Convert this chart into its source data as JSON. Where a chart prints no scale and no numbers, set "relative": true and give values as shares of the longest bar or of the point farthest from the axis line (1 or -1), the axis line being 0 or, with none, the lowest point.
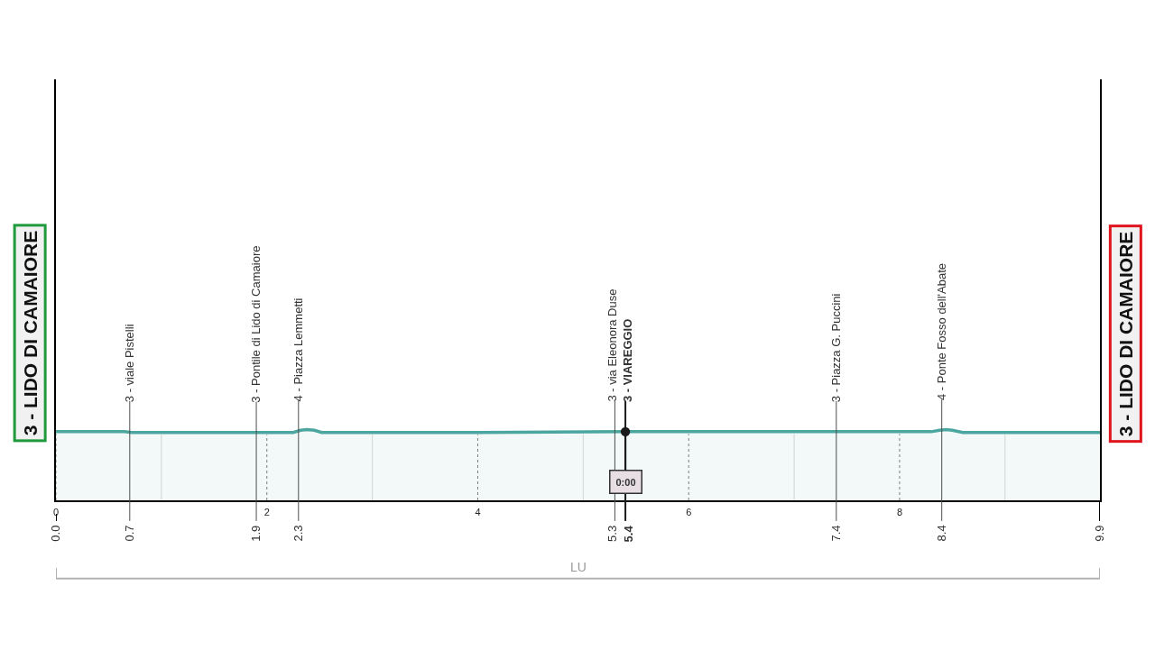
{
  "chart_data": {
    "type": "area",
    "relative": true,
    "x": [
      0,
      0.65,
      0.72,
      2.25,
      2.32,
      2.38,
      2.45,
      2.52,
      4.0,
      5.4,
      8.3,
      8.38,
      8.44,
      8.5,
      8.6,
      9.9
    ],
    "series": [
      {
        "color": "#4aa69f",
        "values": [
          0.97,
          0.97,
          0.96,
          0.96,
          0.99,
          1.0,
          0.99,
          0.96,
          0.96,
          0.97,
          0.97,
          0.99,
          1.0,
          0.99,
          0.96,
          0.96
        ]
      }
    ],
    "xlim": [
      0,
      9.9
    ],
    "xticks": [
      0,
      {
        "value": 1,
        "label": null
      },
      2,
      {
        "value": 3,
        "label": null
      },
      4,
      {
        "value": 5,
        "label": null
      },
      6,
      {
        "value": 7,
        "label": null
      },
      8,
      {
        "value": 9,
        "label": null
      }
    ],
    "grid": "x",
    "ref_lines": [
      {
        "axis": "x",
        "value": 0,
        "label": "0.0",
        "color": "#000000"
      },
      {
        "axis": "x",
        "value": 0.7,
        "label": "0.7",
        "color": "#4d4d4d"
      },
      {
        "axis": "x",
        "value": 1.9,
        "label": "1.9",
        "color": "#4d4d4d"
      },
      {
        "axis": "x",
        "value": 2.3,
        "label": "2.3",
        "color": "#4d4d4d"
      },
      {
        "axis": "x",
        "value": 5.3,
        "label": "5.3",
        "color": "#4d4d4d"
      },
      {
        "axis": "x",
        "value": 5.4,
        "label": "5.4",
        "color": "#1a1a1a"
      },
      {
        "axis": "x",
        "value": 7.4,
        "label": "7.4",
        "color": "#4d4d4d"
      },
      {
        "axis": "x",
        "value": 8.4,
        "label": "8.4",
        "color": "#4d4d4d"
      },
      {
        "axis": "x",
        "value": 9.9,
        "label": "9.9",
        "color": "#000000"
      }
    ],
    "bands": [
      {
        "axis": "x",
        "from": 0,
        "to": 9.9,
        "label": "LU"
      }
    ],
    "annotations": [
      {
        "text": "3 - LIDO DI CAMAIORE",
        "x": 0,
        "y": 0.97
      },
      {
        "text": "3 - viale Pistelli",
        "x": 0.7,
        "y": 0.97
      },
      {
        "text": "3 - Pontile di Lido di Camaiore",
        "x": 1.9,
        "y": 0.96
      },
      {
        "text": "4 - Piazza Lemmetti",
        "x": 2.3,
        "y": 0.98
      },
      {
        "text": "3 - via Eleonora Duse",
        "x": 5.3,
        "y": 0.97
      },
      {
        "text": "3 - VIAREGGIO",
        "x": 5.4,
        "y": 0.97
      },
      {
        "text": "0:00",
        "x": 5.4,
        "y": 0.97
      },
      {
        "text": "3 - Piazza G. Puccini",
        "x": 7.4,
        "y": 0.97
      },
      {
        "text": "4 - Ponte Fosso dell'Abate",
        "x": 8.4,
        "y": 0.99
      },
      {
        "text": "3 - LIDO DI CAMAIORE",
        "x": 9.9,
        "y": 0.96
      }
    ]
  }
}
